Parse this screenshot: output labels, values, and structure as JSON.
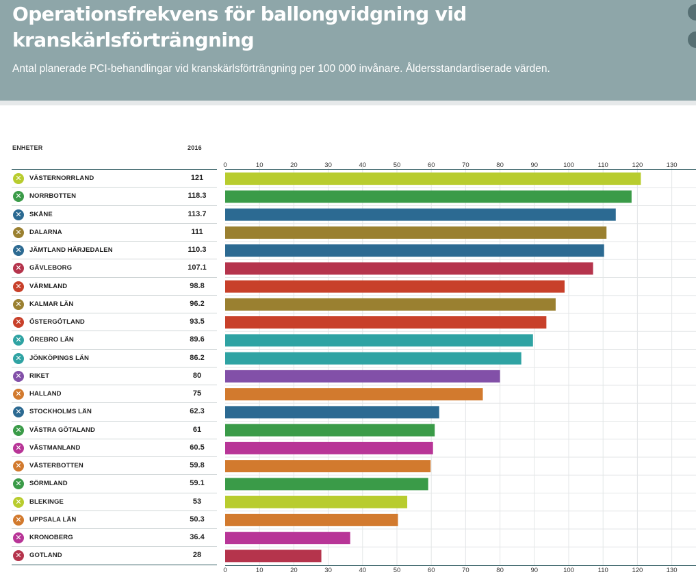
{
  "header": {
    "title_line1": "Operationsfrekvens för ballongvidgning vid",
    "title_line2": "kranskärlsförträngning",
    "subtitle": "Antal planerade PCI-behandlingar vid kranskärlsförträngning per 100 000 invånare. Åldersstandardiserade värden."
  },
  "columns": {
    "units": "ENHETER",
    "year": "2016"
  },
  "colors": {
    "header_bg": "#8ea6a9",
    "lime": "#b8cc2e",
    "green": "#3a9b48",
    "blue": "#2c6a92",
    "olive": "#9a8030",
    "red": "#b5344c",
    "orange_red": "#c8402a",
    "teal": "#2fa3a3",
    "purple": "#8250a8",
    "orange": "#d27a2e",
    "magenta": "#b83597"
  },
  "chart_data": {
    "type": "bar",
    "orientation": "horizontal",
    "title": "Operationsfrekvens för ballongvidgning vid kranskärlsförträngning",
    "subtitle": "Antal planerade PCI-behandlingar vid kranskärlsförträngning per 100 000 invånare. Åldersstandardiserade värden.",
    "series_name": "2016",
    "xlim": [
      0,
      130
    ],
    "ticks": [
      0,
      10,
      20,
      30,
      40,
      50,
      60,
      70,
      80,
      90,
      100,
      110,
      120,
      130
    ],
    "grid": true,
    "categories": [
      "VÄSTERNORRLAND",
      "NORRBOTTEN",
      "SKÅNE",
      "DALARNA",
      "JÄMTLAND HÄRJEDALEN",
      "GÄVLEBORG",
      "VÄRMLAND",
      "KALMAR LÄN",
      "ÖSTERGÖTLAND",
      "ÖREBRO LÄN",
      "JÖNKÖPINGS LÄN",
      "RIKET",
      "HALLAND",
      "STOCKHOLMS LÄN",
      "VÄSTRA GÖTALAND",
      "VÄSTMANLAND",
      "VÄSTERBOTTEN",
      "SÖRMLAND",
      "BLEKINGE",
      "UPPSALA LÄN",
      "KRONOBERG",
      "GOTLAND"
    ],
    "values": [
      121,
      118.3,
      113.7,
      111,
      110.3,
      107.1,
      98.8,
      96.2,
      93.5,
      89.6,
      86.2,
      80,
      75,
      62.3,
      61,
      60.5,
      59.8,
      59.1,
      53,
      50.3,
      36.4,
      28
    ],
    "bar_colors": [
      "#b8cc2e",
      "#3a9b48",
      "#2c6a92",
      "#9a8030",
      "#2c6a92",
      "#b5344c",
      "#c8402a",
      "#9a8030",
      "#c8402a",
      "#2fa3a3",
      "#2fa3a3",
      "#8250a8",
      "#d27a2e",
      "#2c6a92",
      "#3a9b48",
      "#b83597",
      "#d27a2e",
      "#3a9b48",
      "#b8cc2e",
      "#d27a2e",
      "#b83597",
      "#b5344c"
    ]
  }
}
